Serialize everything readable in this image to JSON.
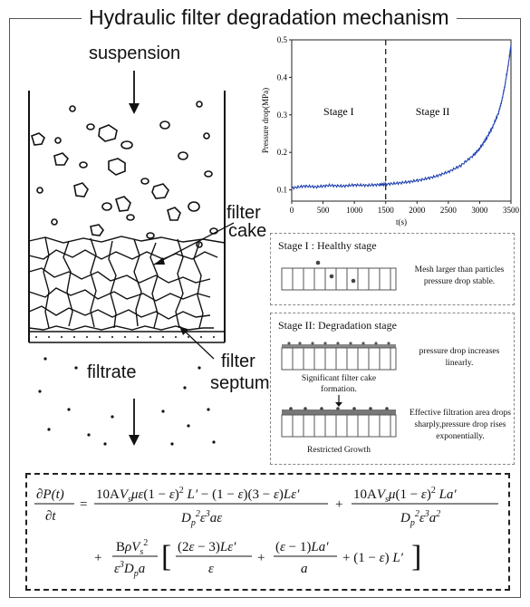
{
  "title": "Hydraulic filter degradation mechanism",
  "schematic": {
    "suspension": "suspension",
    "filter_cake_1": "filter",
    "filter_cake_2": "cake",
    "filter_septum_1": "filter",
    "filter_septum_2": "septum",
    "filtrate": "filtrate"
  },
  "chart_data": {
    "type": "line",
    "ylabel": "Pressure drop(MPa)",
    "xlabel": "t(s)",
    "xlim": [
      0,
      3500
    ],
    "ylim": [
      0.07,
      0.5
    ],
    "xticks": [
      "0",
      "500",
      "1000",
      "1500",
      "2000",
      "2500",
      "3000",
      "3500"
    ],
    "yticks": [
      "0.1",
      "0.2",
      "0.3",
      "0.4",
      "0.5"
    ],
    "annotations": [
      "Stage I",
      "Stage II"
    ],
    "divider_x": 1500,
    "series": [
      {
        "color": "#1f3fb0",
        "x": [
          0,
          200,
          400,
          600,
          800,
          1000,
          1200,
          1400,
          1500,
          1700,
          1900,
          2100,
          2300,
          2500,
          2700,
          2900,
          3000,
          3100,
          3200,
          3300,
          3350,
          3400,
          3450,
          3500
        ],
        "y": [
          0.105,
          0.11,
          0.108,
          0.112,
          0.11,
          0.113,
          0.112,
          0.114,
          0.115,
          0.118,
          0.122,
          0.128,
          0.136,
          0.148,
          0.165,
          0.192,
          0.21,
          0.235,
          0.265,
          0.305,
          0.335,
          0.375,
          0.425,
          0.485
        ]
      }
    ]
  },
  "stage1": {
    "heading": "Stage I : Healthy stage",
    "desc_1": "Mesh larger than particles",
    "desc_2": "pressure drop stable."
  },
  "stage2": {
    "heading": "Stage II: Degradation stage",
    "desc_a_1": "pressure drop increases",
    "desc_a_2": "linearly.",
    "caption_a_1": "Significant filter cake",
    "caption_a_2": "formation.",
    "desc_b_1": "Effective filtration area drops",
    "desc_b_2": "sharply,pressure drop rises",
    "desc_b_3": "exponentially.",
    "caption_b": "Restricted Growth"
  }
}
